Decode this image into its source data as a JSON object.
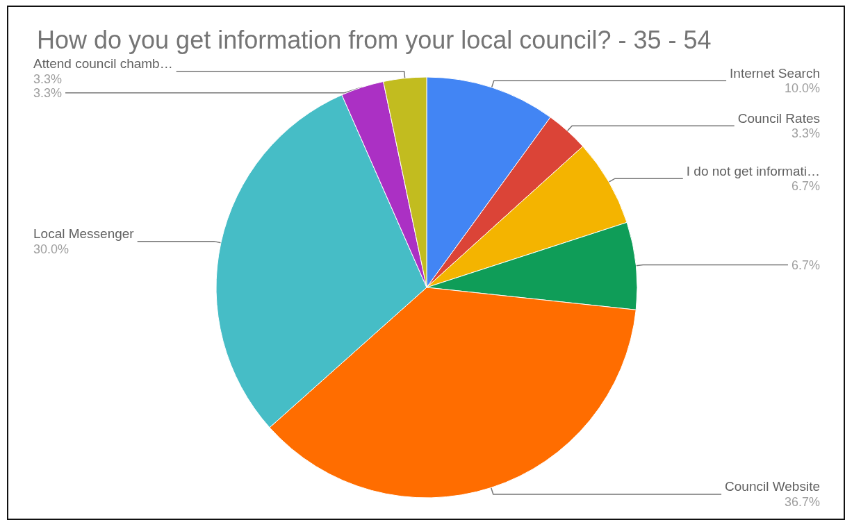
{
  "chart_data": {
    "type": "pie",
    "title": "How do you get information from your local council? - 35 - 54",
    "categories": [
      "Internet Search",
      "Council Rates",
      "I do not get informati…",
      null,
      "Council Website",
      "Local Messenger",
      null,
      "Attend council chamb…"
    ],
    "values": [
      10.0,
      3.3,
      6.7,
      6.7,
      36.7,
      30.0,
      3.3,
      3.3
    ],
    "value_labels": [
      "10.0%",
      "3.3%",
      "6.7%",
      "6.7%",
      "36.7%",
      "30.0%",
      "3.3%",
      "3.3%"
    ],
    "colors": [
      "#4285f4",
      "#db4437",
      "#f4b400",
      "#0f9d58",
      "#ff6d00",
      "#46bdc6",
      "#ab30c4",
      "#c2bc1f"
    ],
    "legend": false
  }
}
